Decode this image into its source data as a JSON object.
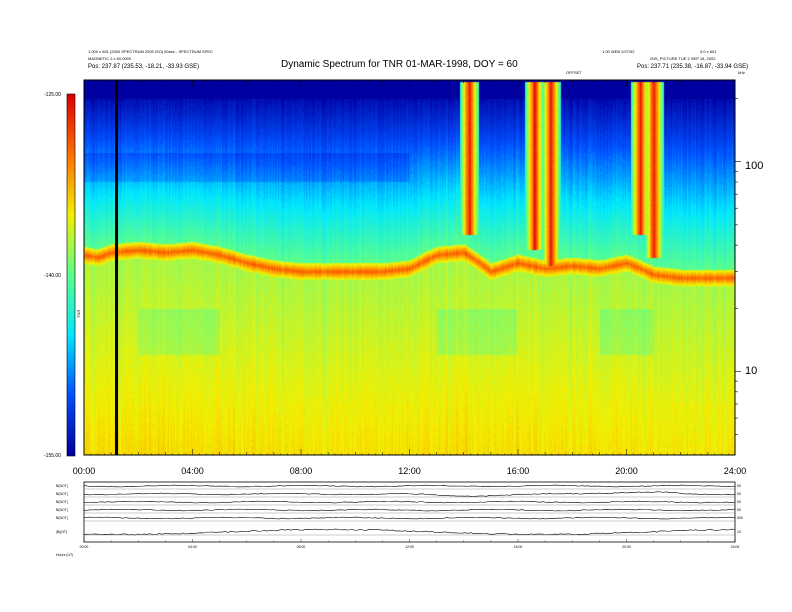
{
  "header": {
    "left_line1": "1.000 x 601 (2000 SPECTRUM 2000 ISO) 60sec - SPECTRUM SPEC",
    "left_line2": "MAGNETIC 2 x 60,0000",
    "left_pos": "Pos:   237.87 (235.53, -18.21, -33.93 GSE)",
    "right_line1": "1.00 WEB 2/27/02",
    "right_line2": "0.0 x 601",
    "right_line3": "ISIS_PICTURE TUE 2 SEP 18, 2002",
    "right_pos": "Pos:   237.71 (235.38, -16.87, -33.94 GSE)",
    "mid_label": "OFFSET",
    "corner_label": "kHz"
  },
  "chart_data": [
    {
      "type": "heatmap",
      "title": "Dynamic Spectrum for TNR 01-MAR-1998, DOY = 60",
      "x_ticks": [
        "00:00",
        "04:00",
        "08:00",
        "12:00",
        "16:00",
        "20:00",
        "24:00"
      ],
      "x_range_hours": [
        0,
        24
      ],
      "y_ticks": [
        "100",
        "10"
      ],
      "y_scale": "log",
      "y_range_khz": [
        4,
        245
      ],
      "colorbar": {
        "ticks": [
          "-125.00",
          "-140.00",
          "-155.00"
        ],
        "label": "TNR",
        "range": [
          -155,
          -125
        ],
        "colors": [
          "#0000a0",
          "#0050ff",
          "#00e8ff",
          "#5aff8c",
          "#f4f000",
          "#ff7000",
          "#e00000"
        ]
      },
      "marker_hour": 1.2,
      "features": {
        "plasma_line_khz": [
          [
            0,
            36
          ],
          [
            0.5,
            35
          ],
          [
            1,
            37
          ],
          [
            2,
            38
          ],
          [
            3,
            37
          ],
          [
            4,
            38
          ],
          [
            5,
            36
          ],
          [
            6,
            33
          ],
          [
            7,
            31
          ],
          [
            8,
            30
          ],
          [
            9,
            30
          ],
          [
            10,
            30
          ],
          [
            11,
            30
          ],
          [
            12,
            31
          ],
          [
            13,
            36
          ],
          [
            14,
            37
          ],
          [
            15,
            30
          ],
          [
            16,
            33
          ],
          [
            17,
            31
          ],
          [
            18,
            32
          ],
          [
            19,
            31
          ],
          [
            20,
            33
          ],
          [
            21,
            29
          ],
          [
            22,
            28
          ],
          [
            23,
            28
          ],
          [
            24,
            28
          ]
        ],
        "bursts": [
          {
            "hour": 14.2,
            "low_khz": 45,
            "high_khz": 240
          },
          {
            "hour": 16.6,
            "low_khz": 38,
            "high_khz": 240
          },
          {
            "hour": 17.2,
            "low_khz": 32,
            "high_khz": 240
          },
          {
            "hour": 20.5,
            "low_khz": 45,
            "high_khz": 240
          },
          {
            "hour": 21.0,
            "low_khz": 35,
            "high_khz": 240
          }
        ]
      }
    },
    {
      "type": "line",
      "panel": "magnetic field",
      "x_ticks": [
        "00:00",
        "04:00",
        "08:00",
        "12:00",
        "16:00",
        "20:00",
        "24:00"
      ],
      "rows": [
        {
          "label": "B(NOT)",
          "right_tick": "50"
        },
        {
          "label": "B(NOT)",
          "right_tick": "50"
        },
        {
          "label": "B(NOT)",
          "right_tick": "50"
        },
        {
          "label": "B(NOT)",
          "right_tick": "50"
        },
        {
          "label": "B(NOT)",
          "right_tick": "500"
        },
        {
          "label": "|B|(NT)",
          "right_tick": "10"
        }
      ]
    }
  ],
  "footer": {
    "label": "Hours (UT)"
  }
}
